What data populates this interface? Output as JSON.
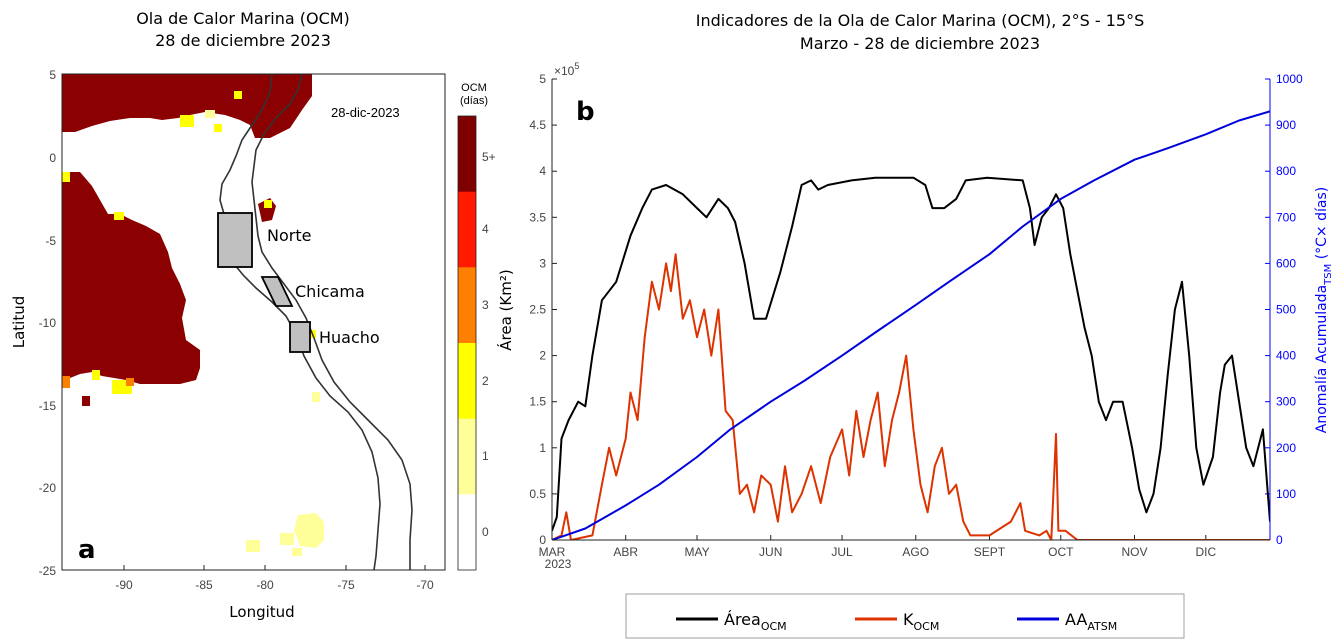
{
  "left_panel": {
    "title_line1": "Ola de Calor Marina (OCM)",
    "title_line2": "28 de diciembre 2023",
    "date_label": "28-dic-2023",
    "panel_letter": "a",
    "xlabel": "Longitud",
    "ylabel": "Latitud",
    "x_ticks": [
      "-90",
      "-85",
      "-80",
      "-75",
      "-70"
    ],
    "y_ticks": [
      "5",
      "0",
      "-5",
      "-10",
      "-15",
      "-20",
      "-25"
    ],
    "regions": [
      {
        "name": "Norte"
      },
      {
        "name": "Chicama"
      },
      {
        "name": "Huacho"
      }
    ],
    "colorbar": {
      "title_line1": "OCM",
      "title_line2": "(días)",
      "labels": [
        "5+",
        "4",
        "3",
        "2",
        "1",
        "0"
      ],
      "colors": [
        "#7f0000",
        "#ff1a00",
        "#ff8000",
        "#ffff00",
        "#ffff99",
        "#ffffff"
      ]
    }
  },
  "right_panel": {
    "title_line1": "Indicadores de la Ola de Calor Marina (OCM), 2°S - 15°S",
    "title_line2": "Marzo - 28 de diciembre 2023",
    "panel_letter": "b",
    "exponent_label": "×10",
    "exponent_power": "5",
    "ylabel_left": "Área (Km²)",
    "ylabel_right": "Anomalía Acumulada",
    "ylabel_right_sub": "TSM",
    "ylabel_right_unit": " (°C× días)",
    "left_ticks": [
      "0",
      "0.5",
      "1",
      "1.5",
      "2",
      "2.5",
      "3",
      "3.5",
      "4",
      "4.5",
      "5"
    ],
    "right_ticks": [
      "0",
      "100",
      "200",
      "300",
      "400",
      "500",
      "600",
      "700",
      "800",
      "900",
      "1000"
    ],
    "month_ticks": [
      "MAR",
      "ABR",
      "MAY",
      "JUN",
      "JUL",
      "AGO",
      "SEPT",
      "OCT",
      "NOV",
      "DIC"
    ],
    "year_label": "2023",
    "legend": [
      {
        "label": "Área",
        "sub": "OCM",
        "color": "#000000"
      },
      {
        "label": "K",
        "sub": "OCM",
        "color": "#dd3300"
      },
      {
        "label": "AA",
        "sub": "ATSM",
        "color": "#0000dd"
      }
    ]
  },
  "chart_data": [
    {
      "type": "heatmap",
      "title": "Ola de Calor Marina (OCM) 28 de diciembre 2023",
      "xlabel": "Longitud",
      "ylabel": "Latitud",
      "xlim": [
        -95,
        -68
      ],
      "ylim": [
        -25,
        5
      ],
      "annotation": "28-dic-2023",
      "colorbar_title": "OCM (días)",
      "colorbar_categories": [
        "0",
        "1",
        "2",
        "3",
        "4",
        "5+"
      ],
      "regions": [
        "Norte",
        "Chicama",
        "Huacho"
      ]
    },
    {
      "type": "line",
      "title": "Indicadores de la Ola de Calor Marina (OCM), 2°S - 15°S Marzo - 28 de diciembre 2023",
      "xlabel": "",
      "ylabel": "Área (Km²) ×10^5",
      "ylabel_right": "Anomalía Acumulada TSM (°C× días)",
      "xlim": [
        "2023-03-01",
        "2023-12-28"
      ],
      "ylim": [
        0,
        5
      ],
      "ylim_right": [
        0,
        1000
      ],
      "categories": [
        "MAR",
        "ABR",
        "MAY",
        "JUN",
        "JUL",
        "AGO",
        "SEPT",
        "OCT",
        "NOV",
        "DIC"
      ],
      "series": [
        {
          "name": "Área OCM",
          "axis": "left",
          "color": "#000000",
          "points": [
            [
              "2023-03-01",
              0.1
            ],
            [
              "2023-03-03",
              0.25
            ],
            [
              "2023-03-05",
              1.1
            ],
            [
              "2023-03-08",
              1.3
            ],
            [
              "2023-03-12",
              1.5
            ],
            [
              "2023-03-15",
              1.45
            ],
            [
              "2023-03-18",
              2.0
            ],
            [
              "2023-03-22",
              2.6
            ],
            [
              "2023-03-28",
              2.8
            ],
            [
              "2023-04-03",
              3.3
            ],
            [
              "2023-04-08",
              3.6
            ],
            [
              "2023-04-12",
              3.8
            ],
            [
              "2023-04-18",
              3.85
            ],
            [
              "2023-04-25",
              3.75
            ],
            [
              "2023-05-01",
              3.6
            ],
            [
              "2023-05-05",
              3.5
            ],
            [
              "2023-05-10",
              3.7
            ],
            [
              "2023-05-14",
              3.6
            ],
            [
              "2023-05-17",
              3.45
            ],
            [
              "2023-05-21",
              3.0
            ],
            [
              "2023-05-25",
              2.4
            ],
            [
              "2023-05-30",
              2.4
            ],
            [
              "2023-06-05",
              2.9
            ],
            [
              "2023-06-10",
              3.4
            ],
            [
              "2023-06-14",
              3.85
            ],
            [
              "2023-06-18",
              3.9
            ],
            [
              "2023-06-21",
              3.8
            ],
            [
              "2023-06-25",
              3.85
            ],
            [
              "2023-07-05",
              3.9
            ],
            [
              "2023-07-15",
              3.93
            ],
            [
              "2023-07-31",
              3.93
            ],
            [
              "2023-08-05",
              3.85
            ],
            [
              "2023-08-08",
              3.6
            ],
            [
              "2023-08-13",
              3.6
            ],
            [
              "2023-08-18",
              3.7
            ],
            [
              "2023-08-22",
              3.9
            ],
            [
              "2023-08-31",
              3.93
            ],
            [
              "2023-09-15",
              3.9
            ],
            [
              "2023-09-18",
              3.6
            ],
            [
              "2023-09-20",
              3.2
            ],
            [
              "2023-09-23",
              3.5
            ],
            [
              "2023-09-26",
              3.6
            ],
            [
              "2023-09-29",
              3.75
            ],
            [
              "2023-10-02",
              3.6
            ],
            [
              "2023-10-05",
              3.1
            ],
            [
              "2023-10-08",
              2.7
            ],
            [
              "2023-10-11",
              2.3
            ],
            [
              "2023-10-14",
              2.0
            ],
            [
              "2023-10-17",
              1.5
            ],
            [
              "2023-10-20",
              1.3
            ],
            [
              "2023-10-23",
              1.5
            ],
            [
              "2023-10-27",
              1.5
            ],
            [
              "2023-10-31",
              1.0
            ],
            [
              "2023-11-03",
              0.55
            ],
            [
              "2023-11-06",
              0.3
            ],
            [
              "2023-11-09",
              0.5
            ],
            [
              "2023-11-12",
              1.0
            ],
            [
              "2023-11-15",
              1.8
            ],
            [
              "2023-11-18",
              2.5
            ],
            [
              "2023-11-21",
              2.8
            ],
            [
              "2023-11-24",
              2.0
            ],
            [
              "2023-11-27",
              1.0
            ],
            [
              "2023-11-30",
              0.6
            ],
            [
              "2023-12-04",
              0.9
            ],
            [
              "2023-12-07",
              1.6
            ],
            [
              "2023-12-09",
              1.9
            ],
            [
              "2023-12-12",
              2.0
            ],
            [
              "2023-12-15",
              1.5
            ],
            [
              "2023-12-18",
              1.0
            ],
            [
              "2023-12-21",
              0.8
            ],
            [
              "2023-12-25",
              1.2
            ],
            [
              "2023-12-28",
              0.2
            ]
          ]
        },
        {
          "name": "K OCM",
          "axis": "left",
          "color": "#dd3300",
          "points": [
            [
              "2023-03-01",
              0.0
            ],
            [
              "2023-03-05",
              0.05
            ],
            [
              "2023-03-07",
              0.3
            ],
            [
              "2023-03-09",
              0.0
            ],
            [
              "2023-03-18",
              0.05
            ],
            [
              "2023-03-22",
              0.6
            ],
            [
              "2023-03-25",
              1.0
            ],
            [
              "2023-03-28",
              0.7
            ],
            [
              "2023-04-01",
              1.1
            ],
            [
              "2023-04-03",
              1.6
            ],
            [
              "2023-04-06",
              1.3
            ],
            [
              "2023-04-09",
              2.2
            ],
            [
              "2023-04-12",
              2.8
            ],
            [
              "2023-04-15",
              2.5
            ],
            [
              "2023-04-18",
              3.0
            ],
            [
              "2023-04-20",
              2.7
            ],
            [
              "2023-04-22",
              3.1
            ],
            [
              "2023-04-25",
              2.4
            ],
            [
              "2023-04-28",
              2.6
            ],
            [
              "2023-05-01",
              2.2
            ],
            [
              "2023-05-04",
              2.5
            ],
            [
              "2023-05-07",
              2.0
            ],
            [
              "2023-05-10",
              2.5
            ],
            [
              "2023-05-13",
              1.4
            ],
            [
              "2023-05-16",
              1.3
            ],
            [
              "2023-05-19",
              0.5
            ],
            [
              "2023-05-22",
              0.6
            ],
            [
              "2023-05-25",
              0.3
            ],
            [
              "2023-05-28",
              0.7
            ],
            [
              "2023-06-01",
              0.6
            ],
            [
              "2023-06-04",
              0.2
            ],
            [
              "2023-06-07",
              0.8
            ],
            [
              "2023-06-10",
              0.3
            ],
            [
              "2023-06-14",
              0.5
            ],
            [
              "2023-06-18",
              0.8
            ],
            [
              "2023-06-22",
              0.4
            ],
            [
              "2023-06-26",
              0.9
            ],
            [
              "2023-07-01",
              1.2
            ],
            [
              "2023-07-04",
              0.7
            ],
            [
              "2023-07-07",
              1.4
            ],
            [
              "2023-07-10",
              0.9
            ],
            [
              "2023-07-13",
              1.3
            ],
            [
              "2023-07-16",
              1.6
            ],
            [
              "2023-07-19",
              0.8
            ],
            [
              "2023-07-22",
              1.3
            ],
            [
              "2023-07-25",
              1.6
            ],
            [
              "2023-07-28",
              2.0
            ],
            [
              "2023-07-31",
              1.2
            ],
            [
              "2023-08-03",
              0.6
            ],
            [
              "2023-08-06",
              0.3
            ],
            [
              "2023-08-09",
              0.8
            ],
            [
              "2023-08-12",
              1.0
            ],
            [
              "2023-08-15",
              0.5
            ],
            [
              "2023-08-18",
              0.6
            ],
            [
              "2023-08-21",
              0.2
            ],
            [
              "2023-08-24",
              0.05
            ],
            [
              "2023-09-01",
              0.05
            ],
            [
              "2023-09-10",
              0.2
            ],
            [
              "2023-09-14",
              0.4
            ],
            [
              "2023-09-16",
              0.1
            ],
            [
              "2023-09-22",
              0.05
            ],
            [
              "2023-09-25",
              0.1
            ],
            [
              "2023-09-27",
              0.0
            ],
            [
              "2023-09-29",
              1.15
            ],
            [
              "2023-09-30",
              0.1
            ],
            [
              "2023-10-03",
              0.1
            ],
            [
              "2023-10-08",
              0.0
            ],
            [
              "2023-12-28",
              0.0
            ]
          ]
        },
        {
          "name": "AA ATSM",
          "axis": "right",
          "color": "#0000dd",
          "points": [
            [
              "2023-03-01",
              0
            ],
            [
              "2023-03-15",
              25
            ],
            [
              "2023-04-01",
              75
            ],
            [
              "2023-04-15",
              120
            ],
            [
              "2023-05-01",
              180
            ],
            [
              "2023-05-15",
              240
            ],
            [
              "2023-06-01",
              300
            ],
            [
              "2023-06-15",
              345
            ],
            [
              "2023-07-01",
              400
            ],
            [
              "2023-07-15",
              450
            ],
            [
              "2023-08-01",
              510
            ],
            [
              "2023-08-15",
              560
            ],
            [
              "2023-09-01",
              620
            ],
            [
              "2023-09-15",
              680
            ],
            [
              "2023-10-01",
              740
            ],
            [
              "2023-10-15",
              780
            ],
            [
              "2023-11-01",
              825
            ],
            [
              "2023-11-15",
              850
            ],
            [
              "2023-12-01",
              880
            ],
            [
              "2023-12-15",
              910
            ],
            [
              "2023-12-28",
              930
            ]
          ]
        }
      ]
    }
  ]
}
